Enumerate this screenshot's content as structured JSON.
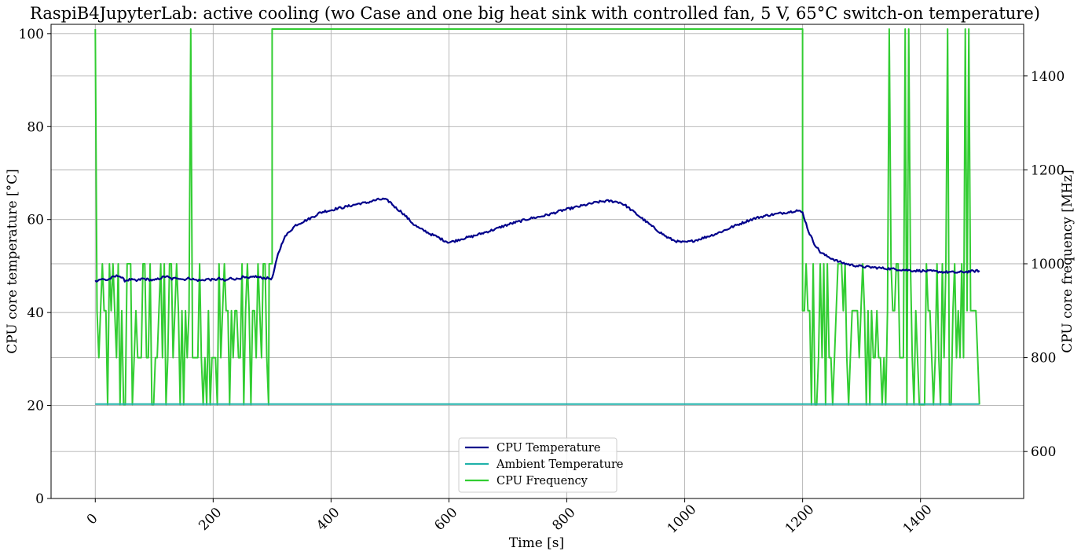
{
  "chart_data": {
    "type": "line",
    "title": "RaspiB4JupyterLab: active cooling (wo Case and one big heat sink with controlled fan, 5 V, 65°C switch-on temperature)",
    "xlabel": "Time [s]",
    "ylabel_left": "CPU core temperature [°C]",
    "ylabel_right": "CPU core frequency [MHz]",
    "xlim": [
      -75,
      1575
    ],
    "ylim_left": [
      0,
      102
    ],
    "ylim_right": [
      500,
      1510
    ],
    "x_ticks": [
      "0",
      "200",
      "400",
      "600",
      "800",
      "1000",
      "1200",
      "1400"
    ],
    "y_left_ticks": [
      "0",
      "20",
      "40",
      "60",
      "80",
      "100"
    ],
    "y_right_ticks": [
      "600",
      "800",
      "1000",
      "1200",
      "1400"
    ],
    "grid": true,
    "legend_position": "lower-center",
    "legend": [
      "CPU Temperature",
      "Ambient Temperature",
      "CPU Frequency"
    ],
    "series": [
      {
        "name": "CPU Temperature",
        "axis": "left",
        "color": "#00008b",
        "x": [
          0,
          10,
          20,
          30,
          40,
          50,
          60,
          70,
          80,
          90,
          100,
          110,
          120,
          130,
          140,
          150,
          160,
          170,
          180,
          190,
          200,
          210,
          220,
          230,
          240,
          250,
          260,
          270,
          280,
          290,
          300,
          310,
          320,
          330,
          340,
          350,
          360,
          370,
          380,
          390,
          400,
          410,
          420,
          430,
          440,
          450,
          460,
          470,
          480,
          490,
          500,
          510,
          520,
          530,
          540,
          550,
          560,
          570,
          580,
          590,
          600,
          610,
          620,
          630,
          640,
          650,
          660,
          670,
          680,
          690,
          700,
          710,
          720,
          730,
          740,
          750,
          760,
          770,
          780,
          790,
          800,
          810,
          820,
          830,
          840,
          850,
          860,
          870,
          880,
          890,
          900,
          910,
          920,
          930,
          940,
          950,
          960,
          970,
          980,
          990,
          1000,
          1010,
          1020,
          1030,
          1040,
          1050,
          1060,
          1070,
          1080,
          1090,
          1100,
          1110,
          1120,
          1130,
          1140,
          1150,
          1160,
          1170,
          1180,
          1190,
          1200,
          1210,
          1220,
          1230,
          1240,
          1250,
          1260,
          1270,
          1280,
          1290,
          1300,
          1310,
          1320,
          1330,
          1340,
          1350,
          1360,
          1370,
          1380,
          1390,
          1400,
          1410,
          1420,
          1430,
          1440,
          1450,
          1460,
          1470,
          1480,
          1490,
          1500
        ],
        "values": [
          46.8,
          47.2,
          47.0,
          47.6,
          48.0,
          46.9,
          47.1,
          46.8,
          47.3,
          47.1,
          46.9,
          47.4,
          47.8,
          47.2,
          47.5,
          47.1,
          47.4,
          47.0,
          46.9,
          47.2,
          47.0,
          47.3,
          46.8,
          47.4,
          47.2,
          47.6,
          47.3,
          47.8,
          47.5,
          47.4,
          47.3,
          52.5,
          56.0,
          57.5,
          58.8,
          59.4,
          60.0,
          60.6,
          61.4,
          61.8,
          62.0,
          62.4,
          62.6,
          62.9,
          63.2,
          63.5,
          63.6,
          64.0,
          64.3,
          64.4,
          63.8,
          62.5,
          61.6,
          60.3,
          59.0,
          58.1,
          57.5,
          56.8,
          56.3,
          55.6,
          55.1,
          55.4,
          55.8,
          56.1,
          56.4,
          56.8,
          57.2,
          57.6,
          58.0,
          58.5,
          58.9,
          59.3,
          59.6,
          60.0,
          60.3,
          60.5,
          60.8,
          61.1,
          61.5,
          61.9,
          62.2,
          62.5,
          62.8,
          63.1,
          63.4,
          63.7,
          63.9,
          64.0,
          63.9,
          63.7,
          63.0,
          62.0,
          61.0,
          60.0,
          59.0,
          58.0,
          57.1,
          56.2,
          55.6,
          55.2,
          55.1,
          55.3,
          55.6,
          56.0,
          56.4,
          56.8,
          57.3,
          57.8,
          58.4,
          58.9,
          59.4,
          59.9,
          60.3,
          60.6,
          60.9,
          61.1,
          61.3,
          61.5,
          61.7,
          62.0,
          61.5,
          57.5,
          54.8,
          53.0,
          52.2,
          51.6,
          51.0,
          50.6,
          50.3,
          50.1,
          49.9,
          49.8,
          49.7,
          49.6,
          49.5,
          49.4,
          49.3,
          49.2,
          49.1,
          49.0,
          49.0,
          48.9,
          48.9,
          48.8,
          48.7,
          48.7,
          48.6,
          48.7,
          48.8,
          48.9,
          49.0
        ],
        "note_noise": true
      },
      {
        "name": "Ambient Temperature",
        "axis": "left",
        "color": "#20b2aa",
        "x": [
          0,
          300,
          600,
          900,
          1200,
          1500
        ],
        "values": [
          20.3,
          20.3,
          20.3,
          20.3,
          20.3,
          20.3
        ]
      },
      {
        "name": "CPU Frequency",
        "axis": "right",
        "color": "#32cd32",
        "pattern": [
          {
            "t_start": 0,
            "t_end": 295,
            "mode": "toggle",
            "levels": [
              700,
              800,
              900,
              1000
            ],
            "spikes": [
              [
                0,
                1500
              ],
              [
                163,
                1500
              ]
            ]
          },
          {
            "t_start": 295,
            "t_end": 300,
            "mode": "steady",
            "value": 1000
          },
          {
            "t_start": 300,
            "t_end": 1200,
            "mode": "steady",
            "value": 1500
          },
          {
            "t_start": 1200,
            "t_end": 1500,
            "mode": "toggle",
            "levels": [
              700,
              800,
              900,
              1000
            ],
            "spikes": [
              [
                1347,
                1500
              ],
              [
                1375,
                1500
              ],
              [
                1381,
                1500
              ],
              [
                1447,
                1500
              ],
              [
                1476,
                1500
              ],
              [
                1482,
                1500
              ]
            ]
          }
        ]
      }
    ]
  }
}
